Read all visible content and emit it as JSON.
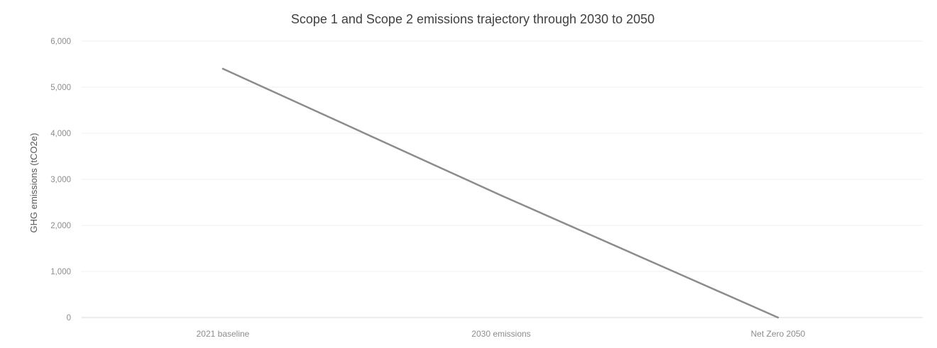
{
  "chart_data": {
    "type": "line",
    "title": "Scope 1 and Scope 2 emissions trajectory through 2030 to 2050",
    "xlabel": "",
    "ylabel": "GHG emissions (tCO2e)",
    "categories": [
      "2021 baseline",
      "2030 emissions",
      "Net Zero 2050"
    ],
    "series": [
      {
        "values": [
          5400,
          2650,
          0
        ],
        "color": "#8c8c8c"
      }
    ],
    "ylim": [
      0,
      6000
    ],
    "yticks": [
      "0",
      "1,000",
      "2,000",
      "3,000",
      "4,000",
      "5,000",
      "6,000"
    ],
    "ytick_values": [
      0,
      1000,
      2000,
      3000,
      4000,
      5000,
      6000
    ],
    "grid": true,
    "legend": "none"
  }
}
